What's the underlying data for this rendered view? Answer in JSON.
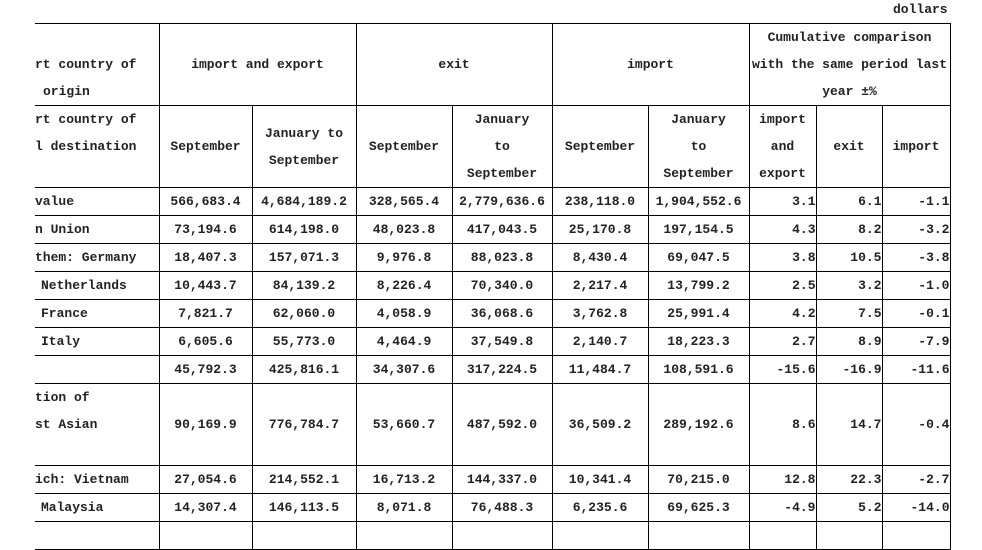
{
  "unit_label": "dollars",
  "header": {
    "row_label_top": [
      "rt country of",
      "origin"
    ],
    "row_label_bottom": [
      "rt country of",
      "l destination"
    ],
    "groups": [
      "import and export",
      "exit",
      "import",
      "Cumulative comparison with the same period last year ±%"
    ],
    "sub": [
      "September",
      "January to September",
      "September",
      "January to September",
      "September",
      "January to September",
      "import and export",
      "exit",
      "import"
    ]
  },
  "rows": [
    {
      "label": "value",
      "indent": false,
      "values": [
        "566,683.4",
        "4,684,189.2",
        "328,565.4",
        "2,779,636.6",
        "238,118.0",
        "1,904,552.6",
        "3.1",
        "6.1",
        "-1.1"
      ]
    },
    {
      "label": "n Union",
      "indent": false,
      "values": [
        "73,194.6",
        "614,198.0",
        "48,023.8",
        "417,043.5",
        "25,170.8",
        "197,154.5",
        "4.3",
        "8.2",
        "-3.2"
      ]
    },
    {
      "label": " them: Germany",
      "indent": false,
      "values": [
        "18,407.3",
        "157,071.3",
        "9,976.8",
        "88,023.8",
        "8,430.4",
        "69,047.5",
        "3.8",
        "10.5",
        "-3.8"
      ]
    },
    {
      "label": "Netherlands",
      "indent": true,
      "values": [
        "10,443.7",
        "84,139.2",
        "8,226.4",
        "70,340.0",
        "2,217.4",
        "13,799.2",
        "2.5",
        "3.2",
        "-1.0"
      ]
    },
    {
      "label": "France",
      "indent": true,
      "values": [
        "7,821.7",
        "62,060.0",
        "4,058.9",
        "36,068.6",
        "3,762.8",
        "25,991.4",
        "4.2",
        "7.5",
        "-0.1"
      ]
    },
    {
      "label": "Italy",
      "indent": true,
      "values": [
        "6,605.6",
        "55,773.0",
        "4,464.9",
        "37,549.8",
        "2,140.7",
        "18,223.3",
        "2.7",
        "8.9",
        "-7.9"
      ]
    },
    {
      "label": "",
      "indent": false,
      "values": [
        "45,792.3",
        "425,816.1",
        "34,307.6",
        "317,224.5",
        "11,484.7",
        "108,591.6",
        "-15.6",
        "-16.9",
        "-11.6"
      ]
    },
    {
      "label": "tion of\nst Asian",
      "indent": false,
      "values": [
        "90,169.9",
        "776,784.7",
        "53,660.7",
        "487,592.0",
        "36,509.2",
        "289,192.6",
        "8.6",
        "14.7",
        "-0.4"
      ]
    },
    {
      "label": "ich: Vietnam",
      "indent": false,
      "values": [
        "27,054.6",
        "214,552.1",
        "16,713.2",
        "144,337.0",
        "10,341.4",
        "70,215.0",
        "12.8",
        "22.3",
        "-2.7"
      ]
    },
    {
      "label": "Malaysia",
      "indent": true,
      "values": [
        "14,307.4",
        "146,113.5",
        "8,071.8",
        "76,488.3",
        "6,235.6",
        "69,625.3",
        "-4.9",
        "5.2",
        "-14.0"
      ]
    }
  ]
}
